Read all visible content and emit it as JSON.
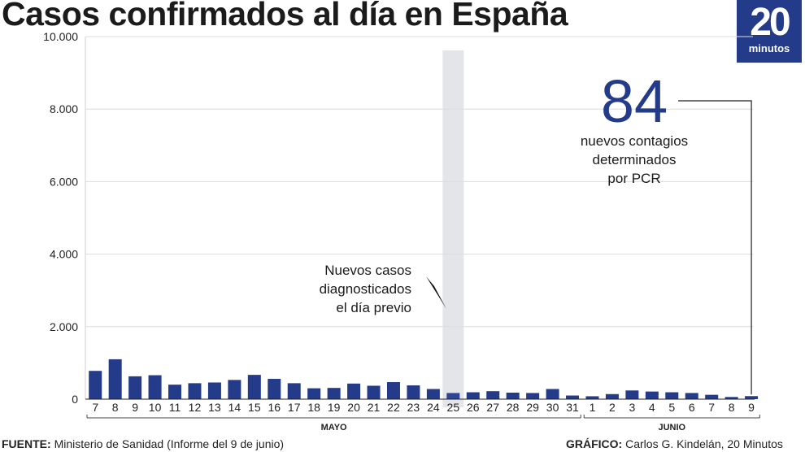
{
  "header": {
    "title": "Casos confirmados al día en España"
  },
  "logo": {
    "number": "20",
    "word": "minutos"
  },
  "footer": {
    "source_label": "FUENTE:",
    "source_text": "Ministerio de Sanidad (Informe del 9 de junio)",
    "credit_label": "GRÁFICO:",
    "credit_text": "Carlos G. Kindelán, 20 Minutos"
  },
  "colors": {
    "bar": "#243b89",
    "highlight": "#2d4596",
    "band": "#e4e5e8",
    "grid": "#dcdcdc"
  },
  "chart_data": {
    "type": "bar",
    "title": "Casos confirmados al día en España",
    "ylim": [
      0,
      10000
    ],
    "yticks": [
      "10.000",
      "8.000",
      "6.000",
      "4.000",
      "2.000",
      "0"
    ],
    "yticks_values": [
      10000,
      8000,
      6000,
      4000,
      2000,
      0
    ],
    "grid": true,
    "categories": [
      "7",
      "8",
      "9",
      "10",
      "11",
      "12",
      "13",
      "14",
      "15",
      "16",
      "17",
      "18",
      "19",
      "20",
      "21",
      "22",
      "23",
      "24",
      "25",
      "26",
      "27",
      "28",
      "29",
      "30",
      "31",
      "1",
      "2",
      "3",
      "4",
      "5",
      "6",
      "7",
      "8",
      "9"
    ],
    "values": [
      780,
      1100,
      630,
      660,
      400,
      440,
      460,
      530,
      670,
      560,
      440,
      300,
      310,
      430,
      370,
      470,
      380,
      280,
      170,
      190,
      220,
      180,
      170,
      280,
      100,
      80,
      140,
      240,
      210,
      190,
      170,
      120,
      60,
      84
    ],
    "months": [
      {
        "label": "MAYO",
        "from": 0,
        "to": 24
      },
      {
        "label": "JUNIO",
        "from": 25,
        "to": 33
      }
    ],
    "highlight_index": 18,
    "band_note": [
      "Nuevos casos",
      "diagnosticados",
      "el día previo"
    ],
    "callout": {
      "value": "84",
      "text": [
        "nuevos contagios",
        "determinados",
        "por PCR"
      ],
      "index": 33
    }
  }
}
